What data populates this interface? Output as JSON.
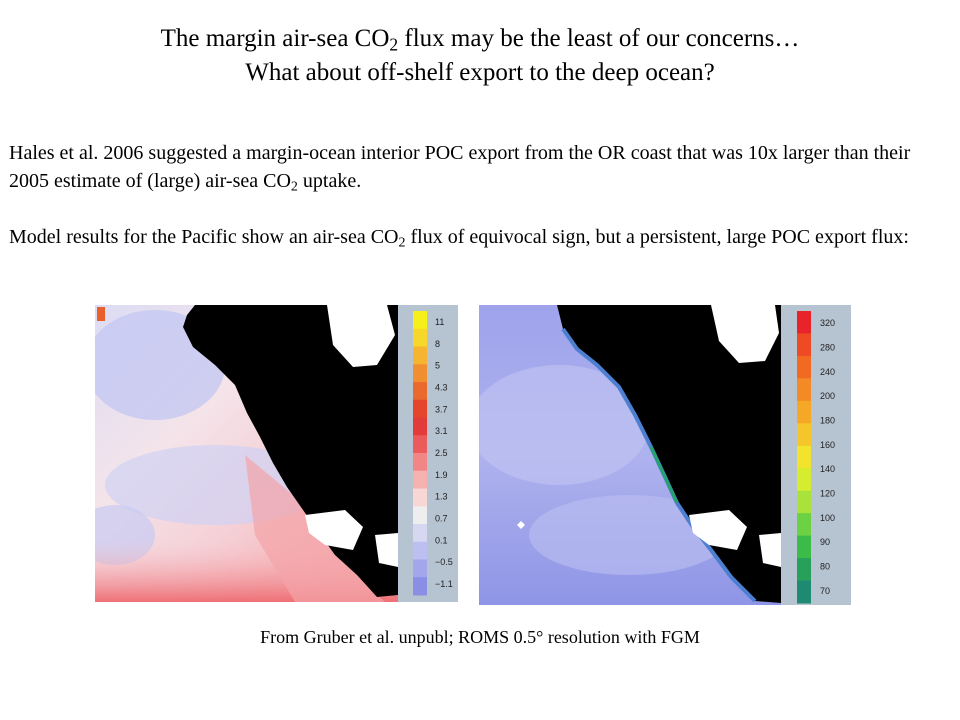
{
  "title": {
    "line1_a": "The margin air-sea CO",
    "line1_sub": "2",
    "line1_b": " flux may be the least of our concerns…",
    "line2": "What about off-shelf export to the deep ocean?"
  },
  "paragraph1": {
    "a": "Hales et al. 2006 suggested a margin-ocean interior POC export from the OR coast that was 10x larger than their 2005 estimate of (large) air-sea CO",
    "sub": "2",
    "b": " uptake."
  },
  "paragraph2": {
    "a": "Model results for the Pacific show an air-sea CO",
    "sub": "2",
    "b": " flux of equivocal sign, but a persistent, large POC export flux:"
  },
  "left_colorbar": {
    "labels": [
      "11",
      "8",
      "5",
      "4.3",
      "3.7",
      "3.1",
      "2.5",
      "1.9",
      "1.3",
      "0.7",
      "0.1",
      "−0.5",
      "−1.1"
    ],
    "colors": [
      "#f5ef1a",
      "#f7d82a",
      "#f5b530",
      "#f08f30",
      "#ea6a2e",
      "#e4452c",
      "#e33a3a",
      "#ec5b5b",
      "#f28686",
      "#f6b1b1",
      "#f8d6d6",
      "#eeeeee",
      "#d6d8f2",
      "#bcbff0",
      "#a3a6ea",
      "#8a8ee4"
    ]
  },
  "right_colorbar": {
    "labels": [
      "320",
      "280",
      "240",
      "200",
      "180",
      "160",
      "140",
      "120",
      "100",
      "90",
      "80",
      "70"
    ],
    "colors": [
      "#e8232a",
      "#ee4a24",
      "#f26a22",
      "#f48a25",
      "#f5a826",
      "#f5c62a",
      "#f2e42c",
      "#d6ec2e",
      "#a9e23a",
      "#6cd143",
      "#3cbb49",
      "#27a05a",
      "#1e8a72"
    ]
  },
  "caption": "From Gruber et al. unpubl; ROMS 0.5° resolution with FGM"
}
